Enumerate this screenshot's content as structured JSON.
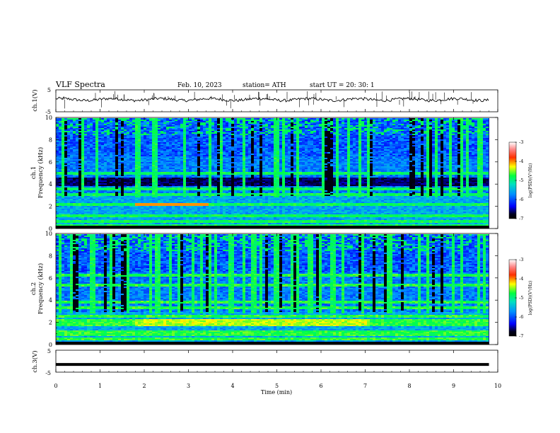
{
  "header": {
    "title": "VLF  Spectra",
    "date": "Feb. 10, 2023",
    "station": "station= ATH",
    "start": "start  UT  =    20: 30: 1"
  },
  "axes": {
    "xlabel": "Time  (min)",
    "x_ticks": [
      "0",
      "1",
      "2",
      "3",
      "4",
      "5",
      "6",
      "7",
      "8",
      "9",
      "10"
    ],
    "ch1_v_label": "ch.1(V)",
    "ch1_v_ticks": [
      "5",
      "-5"
    ],
    "ch1_spec_label": "ch.1",
    "ch2_spec_label": "ch.2",
    "freq_label": "Frequency  (kHz)",
    "freq_ticks": [
      "0",
      "2",
      "4",
      "6",
      "8",
      "10"
    ],
    "ch3_v_label": "ch.3(V)",
    "ch3_v_ticks": [
      "5",
      "-5"
    ]
  },
  "colorbar": {
    "label": "log(PSD)(V²/Hz)",
    "ticks": [
      "-3",
      "-4",
      "-5",
      "-6",
      "-7"
    ],
    "colors": [
      "#000000",
      "#0000ff",
      "#00c8ff",
      "#00ff40",
      "#ffff00",
      "#ff0000",
      "#ffffff"
    ]
  },
  "chart_data": [
    {
      "type": "line",
      "name": "ch.1(V)",
      "xlabel": "Time  (min)",
      "ylabel": "ch.1(V)",
      "xlim": [
        0,
        10
      ],
      "ylim": [
        -5,
        5
      ],
      "x_end": 9.8,
      "series": [
        {
          "values_approx": "noisy waveform around 0 V with sporadic spikes up to about ±2.5 V"
        }
      ]
    },
    {
      "type": "heatmap",
      "name": "ch.1 spectrogram",
      "xlabel": "Time  (min)",
      "ylabel": "Frequency  (kHz)",
      "xlim": [
        0,
        10
      ],
      "ylim": [
        0,
        10
      ],
      "x_end": 9.8,
      "color_scale": {
        "label": "log(PSD)(V²/Hz)",
        "range": [
          -7,
          -3
        ]
      },
      "bands_khz": [
        0.3,
        0.6,
        1.2,
        2.2,
        3.1,
        3.6,
        5.0
      ]
    },
    {
      "type": "heatmap",
      "name": "ch.2 spectrogram",
      "xlabel": "Time  (min)",
      "ylabel": "Frequency  (kHz)",
      "xlim": [
        0,
        10
      ],
      "ylim": [
        0,
        10
      ],
      "x_end": 9.8,
      "color_scale": {
        "label": "log(PSD)(V²/Hz)",
        "range": [
          -7,
          -3
        ]
      },
      "bands_khz": [
        0.5,
        0.9,
        1.2,
        1.8,
        2.0,
        2.2,
        2.6,
        3.3,
        3.9,
        5.4,
        6.3
      ]
    },
    {
      "type": "line",
      "name": "ch.3(V)",
      "xlabel": "Time  (min)",
      "ylabel": "ch.3(V)",
      "xlim": [
        0,
        10
      ],
      "ylim": [
        -5,
        5
      ],
      "x_end": 9.8,
      "series": [
        {
          "values_approx": "flat thick trace at about -1.5 V"
        }
      ]
    }
  ]
}
